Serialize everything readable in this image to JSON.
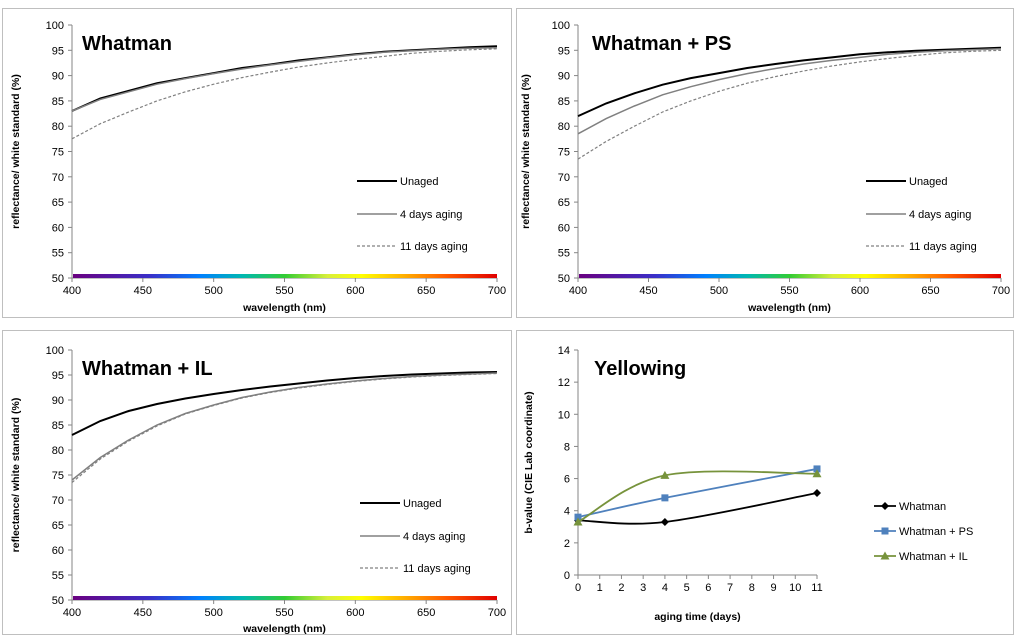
{
  "chart_data": [
    {
      "type": "line",
      "title": "Whatman",
      "xlabel": "wavelength (nm)",
      "ylabel": "reflectance/ white standard (%)",
      "xlim": [
        400,
        700
      ],
      "ylim": [
        50,
        100
      ],
      "xticks": [
        400,
        450,
        500,
        550,
        600,
        650,
        700
      ],
      "yticks": [
        50,
        55,
        60,
        65,
        70,
        75,
        80,
        85,
        90,
        95,
        100
      ],
      "spectrum_band": true,
      "legend": "right",
      "x": [
        400,
        420,
        440,
        460,
        480,
        500,
        520,
        540,
        560,
        580,
        600,
        620,
        640,
        660,
        680,
        700
      ],
      "series": [
        {
          "name": "Unaged",
          "style": "solid-black",
          "values": [
            83,
            85.5,
            87,
            88.5,
            89.5,
            90.5,
            91.5,
            92.2,
            93,
            93.6,
            94.2,
            94.7,
            95,
            95.3,
            95.6,
            95.8
          ]
        },
        {
          "name": "4 days aging",
          "style": "solid-gray",
          "values": [
            83,
            85.3,
            86.8,
            88.3,
            89.4,
            90.4,
            91.3,
            92.1,
            92.8,
            93.5,
            94.1,
            94.6,
            94.9,
            95.2,
            95.4,
            95.5
          ]
        },
        {
          "name": "11 days aging",
          "style": "dashed-gray",
          "values": [
            77.5,
            80.5,
            82.8,
            85,
            86.8,
            88.3,
            89.6,
            90.7,
            91.7,
            92.5,
            93.2,
            93.8,
            94.4,
            94.8,
            95.1,
            95.3
          ]
        }
      ]
    },
    {
      "type": "line",
      "title": "Whatman + PS",
      "xlabel": "wavelength (nm)",
      "ylabel": "reflectance/ white standard (%)",
      "xlim": [
        400,
        700
      ],
      "ylim": [
        50,
        100
      ],
      "xticks": [
        400,
        450,
        500,
        550,
        600,
        650,
        700
      ],
      "yticks": [
        50,
        55,
        60,
        65,
        70,
        75,
        80,
        85,
        90,
        95,
        100
      ],
      "spectrum_band": true,
      "legend": "right",
      "x": [
        400,
        420,
        440,
        460,
        480,
        500,
        520,
        540,
        560,
        580,
        600,
        620,
        640,
        660,
        680,
        700
      ],
      "series": [
        {
          "name": "Unaged",
          "style": "solid-black",
          "values": [
            82,
            84.5,
            86.5,
            88.2,
            89.5,
            90.5,
            91.5,
            92.3,
            93,
            93.6,
            94.2,
            94.6,
            94.9,
            95.1,
            95.3,
            95.5
          ]
        },
        {
          "name": "4 days aging",
          "style": "solid-gray",
          "values": [
            78.5,
            81.5,
            84,
            86.2,
            87.8,
            89.2,
            90.4,
            91.4,
            92.3,
            93,
            93.6,
            94.2,
            94.6,
            94.9,
            95.1,
            95.3
          ]
        },
        {
          "name": "11 days aging",
          "style": "dashed-gray",
          "values": [
            73.5,
            77,
            80,
            82.8,
            85,
            86.9,
            88.5,
            89.8,
            90.9,
            91.9,
            92.7,
            93.4,
            94,
            94.5,
            94.8,
            95
          ]
        }
      ]
    },
    {
      "type": "line",
      "title": "Whatman + IL",
      "xlabel": "wavelength (nm)",
      "ylabel": "reflectance/ white standard (%)",
      "xlim": [
        400,
        700
      ],
      "ylim": [
        50,
        100
      ],
      "xticks": [
        400,
        450,
        500,
        550,
        600,
        650,
        700
      ],
      "yticks": [
        50,
        55,
        60,
        65,
        70,
        75,
        80,
        85,
        90,
        95,
        100
      ],
      "spectrum_band": true,
      "legend": "right",
      "x": [
        400,
        420,
        440,
        460,
        480,
        500,
        520,
        540,
        560,
        580,
        600,
        620,
        640,
        660,
        680,
        700
      ],
      "series": [
        {
          "name": "Unaged",
          "style": "solid-black",
          "values": [
            83,
            85.8,
            87.8,
            89.2,
            90.3,
            91.2,
            92,
            92.7,
            93.3,
            93.9,
            94.4,
            94.8,
            95.1,
            95.3,
            95.5,
            95.6
          ]
        },
        {
          "name": "4 days aging",
          "style": "solid-gray",
          "values": [
            74,
            78.5,
            82,
            85,
            87.3,
            89,
            90.5,
            91.6,
            92.5,
            93.2,
            93.8,
            94.3,
            94.7,
            95,
            95.2,
            95.4
          ]
        },
        {
          "name": "11 days aging",
          "style": "dashed-gray",
          "values": [
            73.5,
            78.2,
            81.8,
            84.8,
            87.2,
            88.9,
            90.4,
            91.5,
            92.4,
            93.1,
            93.7,
            94.2,
            94.6,
            94.9,
            95.1,
            95.3
          ]
        }
      ]
    },
    {
      "type": "line",
      "title": "Yellowing",
      "xlabel": "aging time (days)",
      "ylabel": "b-value (CIE Lab coordinate)",
      "xlim": [
        0,
        11
      ],
      "ylim": [
        0,
        14
      ],
      "xticks": [
        0,
        1,
        2,
        3,
        4,
        5,
        6,
        7,
        8,
        9,
        10,
        11
      ],
      "yticks": [
        0,
        2,
        4,
        6,
        8,
        10,
        12,
        14
      ],
      "legend": "right",
      "x": [
        0,
        4,
        11
      ],
      "series": [
        {
          "name": "Whatman",
          "color": "#000000",
          "marker": "diamond",
          "values": [
            3.4,
            3.3,
            5.1
          ]
        },
        {
          "name": "Whatman + PS",
          "color": "#4f81bd",
          "marker": "square",
          "values": [
            3.6,
            4.8,
            6.6
          ]
        },
        {
          "name": "Whatman + IL",
          "color": "#77933c",
          "marker": "triangle",
          "values": [
            3.3,
            6.2,
            6.3
          ]
        }
      ]
    }
  ]
}
